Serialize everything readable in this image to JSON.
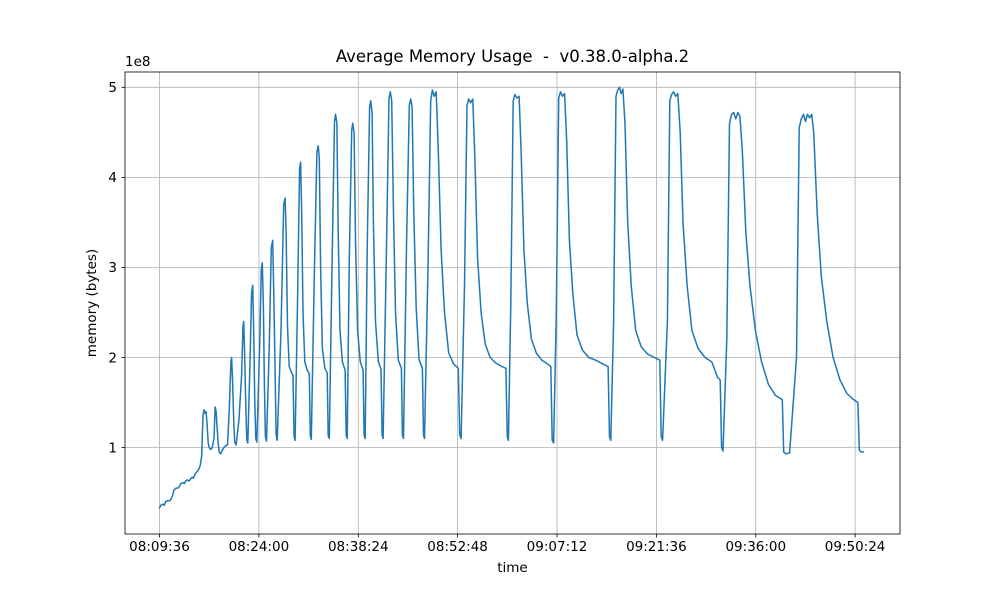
{
  "chart_data": {
    "type": "line",
    "title": "Average Memory Usage  -  v0.38.0-alpha.2",
    "xlabel": "time",
    "ylabel": "memory (bytes)",
    "offset_text": "1e8",
    "series_color": "#1f77b4",
    "grid": true,
    "legend": "none",
    "x_unit": "minutes after 08:09:36",
    "y_unit": "1e8 bytes",
    "xlim": [
      -5.0,
      107.3
    ],
    "ylim": [
      0.04,
      5.17
    ],
    "xticks": [
      {
        "pos": 0.0,
        "label": "08:09:36"
      },
      {
        "pos": 14.4,
        "label": "08:24:00"
      },
      {
        "pos": 28.8,
        "label": "08:38:24"
      },
      {
        "pos": 43.2,
        "label": "08:52:48"
      },
      {
        "pos": 57.6,
        "label": "09:07:12"
      },
      {
        "pos": 72.0,
        "label": "09:21:36"
      },
      {
        "pos": 86.4,
        "label": "09:36:00"
      },
      {
        "pos": 100.8,
        "label": "09:50:24"
      }
    ],
    "yticks": [
      {
        "pos": 1,
        "label": "1"
      },
      {
        "pos": 2,
        "label": "2"
      },
      {
        "pos": 3,
        "label": "3"
      },
      {
        "pos": 4,
        "label": "4"
      },
      {
        "pos": 5,
        "label": "5"
      }
    ],
    "points": [
      [
        0.0,
        0.33
      ],
      [
        0.2,
        0.36
      ],
      [
        0.5,
        0.37
      ],
      [
        0.7,
        0.36
      ],
      [
        0.9,
        0.4
      ],
      [
        1.2,
        0.41
      ],
      [
        1.5,
        0.41
      ],
      [
        1.7,
        0.43
      ],
      [
        1.9,
        0.47
      ],
      [
        2.1,
        0.53
      ],
      [
        2.4,
        0.55
      ],
      [
        2.7,
        0.55
      ],
      [
        2.9,
        0.57
      ],
      [
        3.1,
        0.6
      ],
      [
        3.4,
        0.61
      ],
      [
        3.6,
        0.6
      ],
      [
        3.8,
        0.63
      ],
      [
        4.0,
        0.64
      ],
      [
        4.3,
        0.63
      ],
      [
        4.5,
        0.65
      ],
      [
        4.7,
        0.67
      ],
      [
        4.9,
        0.66
      ],
      [
        5.1,
        0.7
      ],
      [
        5.3,
        0.72
      ],
      [
        5.5,
        0.74
      ],
      [
        5.7,
        0.76
      ],
      [
        5.9,
        0.8
      ],
      [
        6.1,
        0.9
      ],
      [
        6.3,
        1.35
      ],
      [
        6.45,
        1.42
      ],
      [
        6.6,
        1.38
      ],
      [
        6.75,
        1.4
      ],
      [
        6.9,
        1.25
      ],
      [
        7.05,
        1.05
      ],
      [
        7.2,
        1.0
      ],
      [
        7.35,
        0.98
      ],
      [
        7.6,
        0.99
      ],
      [
        7.9,
        1.1
      ],
      [
        8.05,
        1.45
      ],
      [
        8.2,
        1.4
      ],
      [
        8.35,
        1.22
      ],
      [
        8.5,
        1.05
      ],
      [
        8.65,
        0.95
      ],
      [
        8.85,
        0.93
      ],
      [
        9.1,
        0.97
      ],
      [
        9.35,
        1.0
      ],
      [
        9.6,
        1.02
      ],
      [
        9.85,
        1.03
      ],
      [
        10.1,
        1.4
      ],
      [
        10.35,
        1.95
      ],
      [
        10.45,
        2.0
      ],
      [
        10.6,
        1.7
      ],
      [
        10.75,
        1.3
      ],
      [
        10.9,
        1.06
      ],
      [
        11.1,
        1.03
      ],
      [
        11.5,
        1.3
      ],
      [
        11.9,
        1.8
      ],
      [
        12.1,
        2.35
      ],
      [
        12.2,
        2.4
      ],
      [
        12.35,
        2.0
      ],
      [
        12.5,
        1.45
      ],
      [
        12.65,
        1.08
      ],
      [
        12.8,
        1.05
      ],
      [
        13.1,
        1.9
      ],
      [
        13.35,
        2.72
      ],
      [
        13.5,
        2.8
      ],
      [
        13.65,
        2.3
      ],
      [
        13.8,
        1.55
      ],
      [
        13.95,
        1.1
      ],
      [
        14.1,
        1.06
      ],
      [
        14.5,
        2.1
      ],
      [
        14.75,
        2.98
      ],
      [
        14.9,
        3.05
      ],
      [
        15.05,
        2.55
      ],
      [
        15.2,
        1.7
      ],
      [
        15.35,
        1.12
      ],
      [
        15.5,
        1.07
      ],
      [
        15.9,
        2.1
      ],
      [
        16.2,
        3.22
      ],
      [
        16.4,
        3.3
      ],
      [
        16.55,
        2.75
      ],
      [
        16.75,
        1.85
      ],
      [
        16.9,
        1.15
      ],
      [
        17.05,
        1.08
      ],
      [
        17.6,
        2.3
      ],
      [
        18.0,
        3.7
      ],
      [
        18.2,
        3.77
      ],
      [
        18.35,
        3.4
      ],
      [
        18.55,
        2.35
      ],
      [
        18.8,
        1.9
      ],
      [
        19.1,
        1.84
      ],
      [
        19.35,
        1.8
      ],
      [
        19.5,
        1.12
      ],
      [
        19.65,
        1.08
      ],
      [
        20.0,
        2.6
      ],
      [
        20.3,
        4.1
      ],
      [
        20.45,
        4.17
      ],
      [
        20.6,
        3.6
      ],
      [
        20.8,
        2.5
      ],
      [
        21.05,
        1.95
      ],
      [
        21.4,
        1.86
      ],
      [
        21.7,
        1.82
      ],
      [
        21.85,
        1.13
      ],
      [
        22.0,
        1.09
      ],
      [
        22.4,
        2.8
      ],
      [
        22.8,
        4.28
      ],
      [
        23.0,
        4.35
      ],
      [
        23.15,
        4.22
      ],
      [
        23.35,
        3.0
      ],
      [
        23.6,
        2.1
      ],
      [
        23.95,
        1.88
      ],
      [
        24.3,
        1.83
      ],
      [
        24.45,
        1.13
      ],
      [
        24.6,
        1.1
      ],
      [
        25.0,
        3.0
      ],
      [
        25.35,
        4.62
      ],
      [
        25.5,
        4.7
      ],
      [
        25.7,
        4.6
      ],
      [
        25.9,
        3.4
      ],
      [
        26.15,
        2.3
      ],
      [
        26.5,
        1.95
      ],
      [
        26.9,
        1.86
      ],
      [
        27.05,
        1.14
      ],
      [
        27.2,
        1.1
      ],
      [
        27.5,
        3.1
      ],
      [
        27.85,
        4.52
      ],
      [
        28.0,
        4.6
      ],
      [
        28.2,
        4.5
      ],
      [
        28.4,
        3.3
      ],
      [
        28.7,
        2.3
      ],
      [
        29.1,
        1.95
      ],
      [
        29.5,
        1.86
      ],
      [
        29.65,
        1.14
      ],
      [
        29.8,
        1.1
      ],
      [
        30.1,
        3.2
      ],
      [
        30.45,
        4.78
      ],
      [
        30.6,
        4.85
      ],
      [
        30.8,
        4.72
      ],
      [
        31.0,
        3.5
      ],
      [
        31.3,
        2.4
      ],
      [
        31.7,
        1.96
      ],
      [
        32.1,
        1.87
      ],
      [
        32.25,
        1.14
      ],
      [
        32.4,
        1.1
      ],
      [
        32.9,
        3.3
      ],
      [
        33.25,
        4.88
      ],
      [
        33.45,
        4.95
      ],
      [
        33.65,
        4.85
      ],
      [
        33.9,
        3.6
      ],
      [
        34.2,
        2.5
      ],
      [
        34.6,
        1.97
      ],
      [
        35.05,
        1.88
      ],
      [
        35.2,
        1.14
      ],
      [
        35.35,
        1.1
      ],
      [
        35.8,
        3.3
      ],
      [
        36.2,
        4.8
      ],
      [
        36.4,
        4.87
      ],
      [
        36.6,
        4.78
      ],
      [
        36.85,
        3.6
      ],
      [
        37.2,
        2.55
      ],
      [
        37.6,
        1.98
      ],
      [
        38.1,
        1.88
      ],
      [
        38.25,
        1.14
      ],
      [
        38.4,
        1.1
      ],
      [
        38.9,
        3.0
      ],
      [
        39.3,
        4.85
      ],
      [
        39.55,
        4.97
      ],
      [
        39.8,
        4.9
      ],
      [
        40.1,
        4.95
      ],
      [
        40.4,
        4.3
      ],
      [
        40.8,
        3.2
      ],
      [
        41.3,
        2.5
      ],
      [
        41.9,
        2.05
      ],
      [
        42.6,
        1.93
      ],
      [
        43.3,
        1.88
      ],
      [
        43.5,
        1.14
      ],
      [
        43.7,
        1.1
      ],
      [
        44.2,
        2.8
      ],
      [
        44.55,
        4.8
      ],
      [
        44.8,
        4.87
      ],
      [
        45.1,
        4.83
      ],
      [
        45.4,
        4.87
      ],
      [
        45.7,
        4.2
      ],
      [
        46.1,
        3.1
      ],
      [
        46.6,
        2.5
      ],
      [
        47.2,
        2.15
      ],
      [
        47.9,
        2.0
      ],
      [
        48.7,
        1.94
      ],
      [
        49.6,
        1.9
      ],
      [
        50.2,
        1.88
      ],
      [
        50.4,
        1.12
      ],
      [
        50.55,
        1.08
      ],
      [
        50.9,
        2.6
      ],
      [
        51.25,
        4.85
      ],
      [
        51.5,
        4.92
      ],
      [
        51.8,
        4.88
      ],
      [
        52.1,
        4.9
      ],
      [
        52.4,
        4.3
      ],
      [
        52.8,
        3.2
      ],
      [
        53.3,
        2.6
      ],
      [
        53.9,
        2.2
      ],
      [
        54.6,
        2.05
      ],
      [
        55.4,
        1.97
      ],
      [
        56.2,
        1.93
      ],
      [
        56.7,
        1.9
      ],
      [
        56.9,
        1.08
      ],
      [
        57.1,
        1.05
      ],
      [
        57.5,
        2.5
      ],
      [
        57.85,
        4.88
      ],
      [
        58.1,
        4.95
      ],
      [
        58.4,
        4.9
      ],
      [
        58.7,
        4.93
      ],
      [
        59.0,
        4.4
      ],
      [
        59.4,
        3.3
      ],
      [
        59.9,
        2.7
      ],
      [
        60.5,
        2.25
      ],
      [
        61.3,
        2.08
      ],
      [
        62.2,
        2.0
      ],
      [
        63.2,
        1.97
      ],
      [
        64.2,
        1.93
      ],
      [
        65.0,
        1.9
      ],
      [
        65.2,
        1.12
      ],
      [
        65.4,
        1.08
      ],
      [
        65.8,
        2.4
      ],
      [
        66.15,
        4.9
      ],
      [
        66.4,
        4.97
      ],
      [
        66.65,
        5.0
      ],
      [
        66.9,
        4.93
      ],
      [
        67.15,
        4.98
      ],
      [
        67.45,
        4.6
      ],
      [
        67.85,
        3.5
      ],
      [
        68.35,
        2.8
      ],
      [
        69.0,
        2.3
      ],
      [
        69.8,
        2.12
      ],
      [
        70.7,
        2.04
      ],
      [
        71.7,
        2.0
      ],
      [
        72.5,
        1.97
      ],
      [
        72.7,
        1.12
      ],
      [
        72.9,
        1.08
      ],
      [
        73.6,
        2.4
      ],
      [
        73.95,
        4.85
      ],
      [
        74.2,
        4.92
      ],
      [
        74.5,
        4.95
      ],
      [
        74.8,
        4.9
      ],
      [
        75.1,
        4.93
      ],
      [
        75.45,
        4.5
      ],
      [
        75.85,
        3.5
      ],
      [
        76.45,
        2.8
      ],
      [
        77.15,
        2.3
      ],
      [
        78.05,
        2.1
      ],
      [
        79.05,
        2.0
      ],
      [
        80.05,
        1.95
      ],
      [
        80.85,
        1.78
      ],
      [
        81.25,
        1.75
      ],
      [
        81.45,
        1.0
      ],
      [
        81.65,
        0.96
      ],
      [
        82.2,
        2.2
      ],
      [
        82.6,
        4.6
      ],
      [
        82.9,
        4.7
      ],
      [
        83.2,
        4.72
      ],
      [
        83.5,
        4.65
      ],
      [
        83.8,
        4.72
      ],
      [
        84.1,
        4.68
      ],
      [
        84.45,
        4.3
      ],
      [
        84.95,
        3.4
      ],
      [
        85.55,
        2.8
      ],
      [
        86.35,
        2.3
      ],
      [
        87.25,
        1.95
      ],
      [
        88.25,
        1.7
      ],
      [
        89.25,
        1.58
      ],
      [
        90.25,
        1.53
      ],
      [
        90.45,
        0.95
      ],
      [
        90.75,
        0.93
      ],
      [
        91.3,
        0.94
      ],
      [
        92.3,
        2.0
      ],
      [
        92.7,
        4.55
      ],
      [
        93.0,
        4.65
      ],
      [
        93.3,
        4.7
      ],
      [
        93.6,
        4.62
      ],
      [
        93.9,
        4.7
      ],
      [
        94.2,
        4.66
      ],
      [
        94.5,
        4.7
      ],
      [
        94.8,
        4.5
      ],
      [
        95.3,
        3.6
      ],
      [
        95.9,
        2.9
      ],
      [
        96.7,
        2.4
      ],
      [
        97.6,
        2.0
      ],
      [
        98.6,
        1.75
      ],
      [
        99.6,
        1.6
      ],
      [
        100.6,
        1.53
      ],
      [
        101.2,
        1.5
      ],
      [
        101.4,
        0.97
      ],
      [
        101.7,
        0.95
      ],
      [
        102.0,
        0.95
      ]
    ]
  }
}
